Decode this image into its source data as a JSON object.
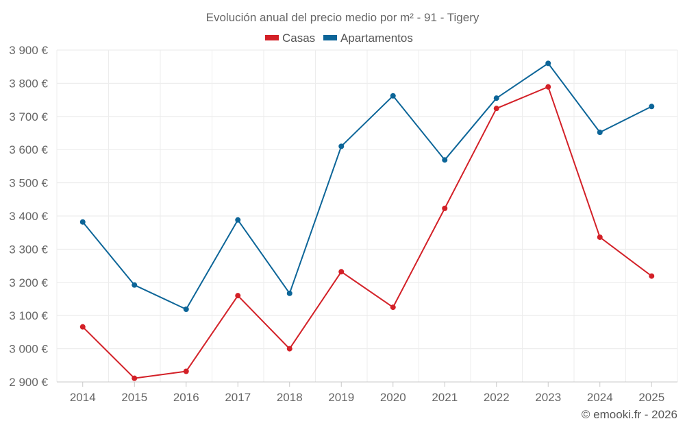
{
  "chart_data": {
    "type": "line",
    "title": "Evolución anual del precio medio por m² - 91 - Tigery",
    "categories": [
      "2014",
      "2015",
      "2016",
      "2017",
      "2018",
      "2019",
      "2020",
      "2021",
      "2022",
      "2023",
      "2024",
      "2025"
    ],
    "series": [
      {
        "name": "Casas",
        "color": "#d32027",
        "values": [
          3066,
          2911,
          2932,
          3160,
          3000,
          3232,
          3125,
          3423,
          3724,
          3789,
          3336,
          3219
        ]
      },
      {
        "name": "Apartamentos",
        "color": "#0c6598",
        "values": [
          3382,
          3192,
          3119,
          3388,
          3167,
          3610,
          3762,
          3569,
          3755,
          3860,
          3652,
          3730
        ]
      }
    ],
    "ylim": [
      2900,
      3900
    ],
    "yticks": [
      2900,
      3000,
      3100,
      3200,
      3300,
      3400,
      3500,
      3600,
      3700,
      3800,
      3900
    ],
    "ytick_labels": [
      "2 900 €",
      "3 000 €",
      "3 100 €",
      "3 200 €",
      "3 300 €",
      "3 400 €",
      "3 500 €",
      "3 600 €",
      "3 700 €",
      "3 800 €",
      "3 900 €"
    ],
    "xlabel": "",
    "ylabel": "",
    "grid": true,
    "legend_position": "top-center",
    "credit": "© emooki.fr - 2026"
  }
}
